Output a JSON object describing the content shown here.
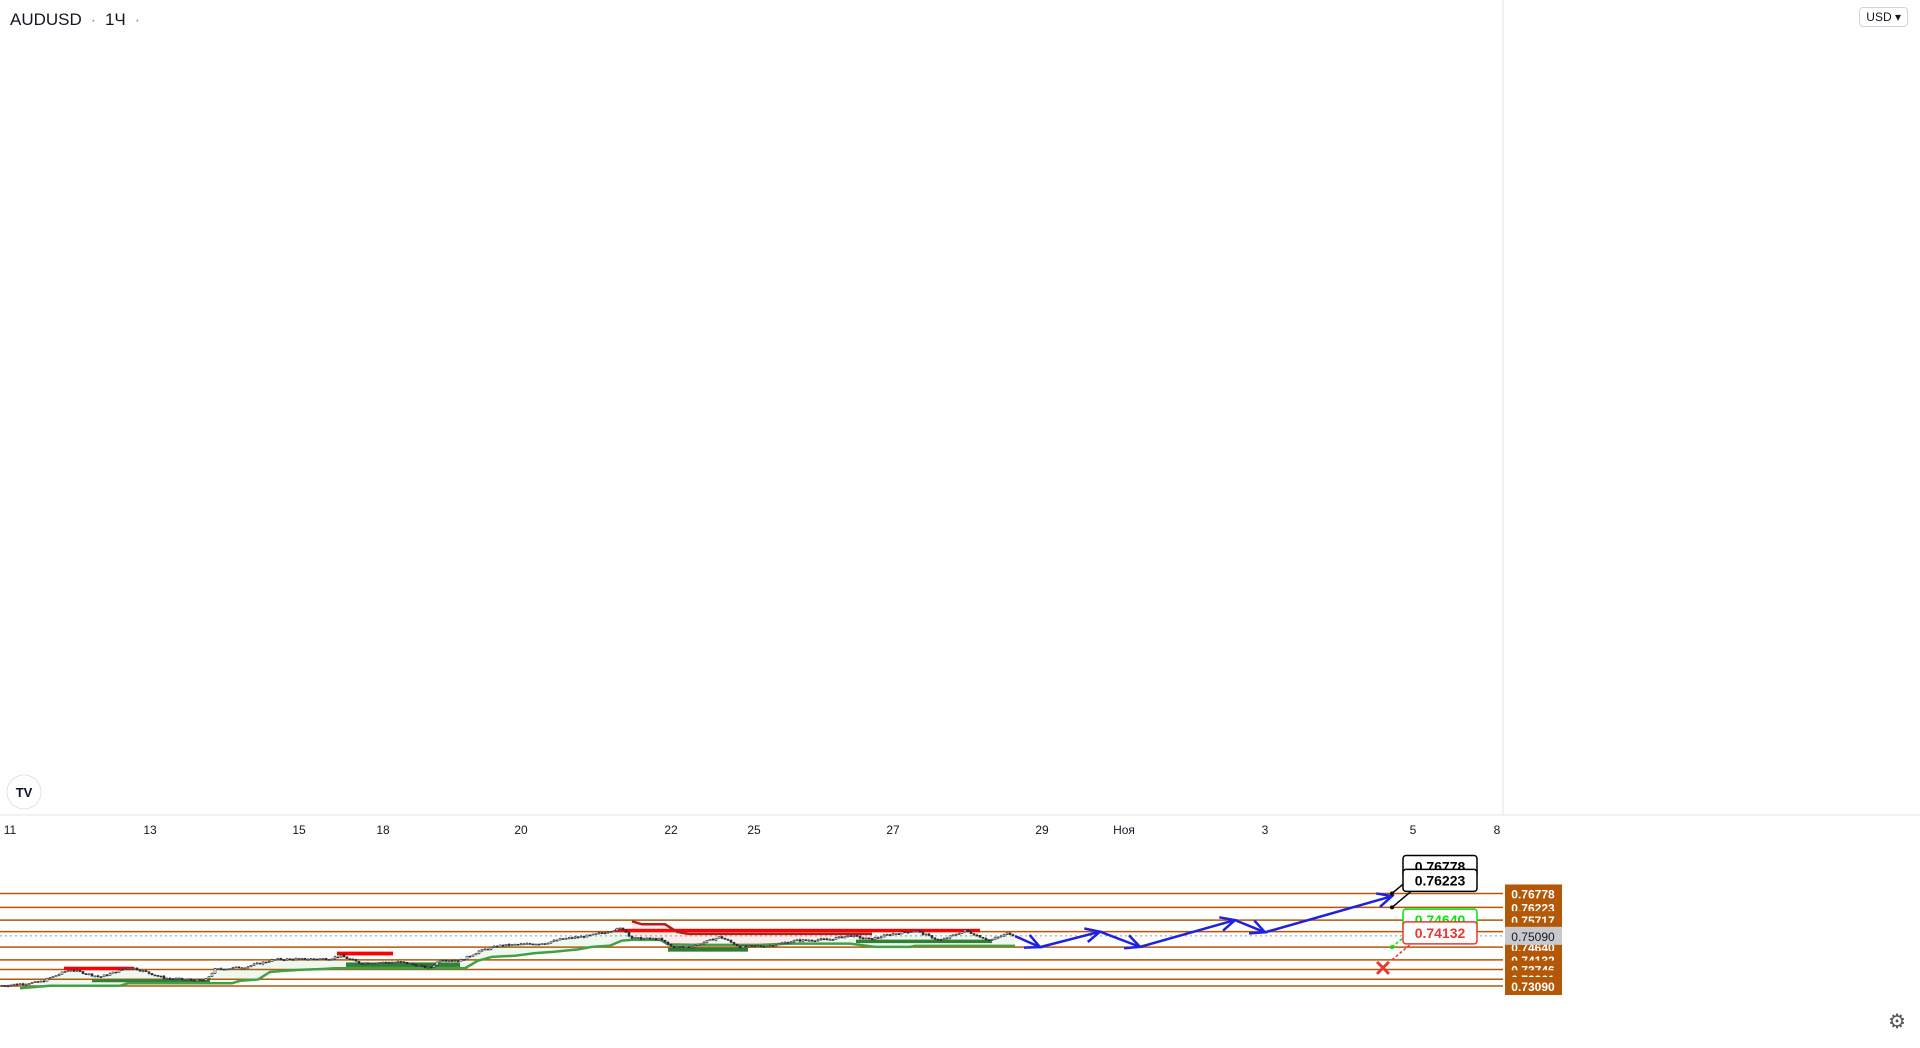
{
  "header": {
    "symbol": "AUDUSD",
    "interval": "1Ч",
    "dot": "·",
    "more": "·"
  },
  "unit_button": "USD ▾",
  "settings_icon": "gear-icon",
  "logo_text": "TV",
  "colors": {
    "level_line": "#b35806",
    "level_label_bg": "#b35806",
    "supply_zone": "#ff0000",
    "demand_zone": "#2e7d32",
    "trail_support": "#43a047",
    "trail_resistance": "#b71c1c",
    "forecast": "#1e22e0",
    "current_price_bg": "#c8c9cc",
    "target_green": "#00e600",
    "target_red": "#e53935"
  },
  "chart_data": {
    "type": "line",
    "symbol": "AUDUSD",
    "timeframe": "1Ч",
    "y_axis": {
      "range": [
        0.73,
        0.7685
      ],
      "ticks": [
        "0.73200",
        "0.73400",
        "0.73600",
        "0.73800",
        "0.74000",
        "0.74200",
        "0.74400",
        "0.74600",
        "0.74800",
        "0.75000",
        "0.75200",
        "0.75400",
        "0.75600",
        "0.75800",
        "0.76000",
        "0.76200",
        "0.76400",
        "0.76600",
        "0.76800"
      ]
    },
    "x_axis": {
      "ticks": [
        "11",
        "13",
        "15",
        "18",
        "20",
        "22",
        "25",
        "27",
        "29",
        "Ноя",
        "3",
        "5",
        "8"
      ]
    },
    "levels": [
      0.76778,
      0.76223,
      0.75717,
      0.75256,
      0.7464,
      0.74132,
      0.73746,
      0.73361,
      0.7309
    ],
    "level_labels": [
      "0.76778",
      "0.76223",
      "0.75717",
      "0.75256",
      "0.74640",
      "0.74132",
      "0.73746",
      "0.73361",
      "0.73090"
    ],
    "current_price": 0.7509,
    "current_price_label": "0.75090",
    "price_path": [
      [
        0,
        0.731
      ],
      [
        40,
        0.7325
      ],
      [
        70,
        0.7375
      ],
      [
        100,
        0.7345
      ],
      [
        130,
        0.7385
      ],
      [
        165,
        0.734
      ],
      [
        205,
        0.733
      ],
      [
        215,
        0.7375
      ],
      [
        245,
        0.7385
      ],
      [
        275,
        0.7415
      ],
      [
        330,
        0.7418
      ],
      [
        340,
        0.743
      ],
      [
        360,
        0.74
      ],
      [
        400,
        0.7405
      ],
      [
        430,
        0.738
      ],
      [
        440,
        0.7415
      ],
      [
        460,
        0.741
      ],
      [
        480,
        0.745
      ],
      [
        500,
        0.747
      ],
      [
        520,
        0.7475
      ],
      [
        545,
        0.748
      ],
      [
        560,
        0.7495
      ],
      [
        590,
        0.751
      ],
      [
        622,
        0.754
      ],
      [
        632,
        0.75
      ],
      [
        660,
        0.7495
      ],
      [
        672,
        0.7465
      ],
      [
        690,
        0.7465
      ],
      [
        720,
        0.7505
      ],
      [
        740,
        0.7465
      ],
      [
        770,
        0.747
      ],
      [
        795,
        0.749
      ],
      [
        830,
        0.7495
      ],
      [
        850,
        0.751
      ],
      [
        870,
        0.7495
      ],
      [
        890,
        0.7515
      ],
      [
        915,
        0.753
      ],
      [
        940,
        0.749
      ],
      [
        965,
        0.753
      ],
      [
        990,
        0.749
      ],
      [
        1008,
        0.752
      ],
      [
        1015,
        0.7509
      ]
    ],
    "supply_zones": [
      {
        "x": [
          64,
          134
        ],
        "y": [
          0.7372,
          0.7386
        ]
      },
      {
        "x": [
          337,
          393
        ],
        "y": [
          0.7431,
          0.7446
        ]
      },
      {
        "x": [
          615,
          980
        ],
        "y": [
          0.7524,
          0.7537
        ]
      }
    ],
    "demand_zones": [
      {
        "x": [
          92,
          210
        ],
        "y": [
          0.7324,
          0.7336
        ]
      },
      {
        "x": [
          346,
          460
        ],
        "y": [
          0.7385,
          0.7403
        ]
      },
      {
        "x": [
          668,
          748
        ],
        "y": [
          0.7446,
          0.7462
        ]
      },
      {
        "x": [
          856,
          992
        ],
        "y": [
          0.748,
          0.7494
        ]
      }
    ],
    "support_trail": [
      [
        20,
        0.73
      ],
      [
        50,
        0.731
      ],
      [
        120,
        0.731
      ],
      [
        128,
        0.732
      ],
      [
        232,
        0.732
      ],
      [
        240,
        0.733
      ],
      [
        258,
        0.7335
      ],
      [
        270,
        0.7365
      ],
      [
        285,
        0.737
      ],
      [
        302,
        0.7374
      ],
      [
        322,
        0.7377
      ],
      [
        335,
        0.738
      ],
      [
        465,
        0.738
      ],
      [
        478,
        0.741
      ],
      [
        492,
        0.7425
      ],
      [
        516,
        0.743
      ],
      [
        535,
        0.744
      ],
      [
        553,
        0.7445
      ],
      [
        578,
        0.7455
      ],
      [
        592,
        0.7465
      ],
      [
        610,
        0.747
      ],
      [
        622,
        0.749
      ],
      [
        632,
        0.7493
      ],
      [
        660,
        0.7493
      ],
      [
        668,
        0.7475
      ],
      [
        700,
        0.7473
      ],
      [
        760,
        0.7473
      ],
      [
        792,
        0.7478
      ],
      [
        850,
        0.7478
      ],
      [
        875,
        0.7465
      ],
      [
        910,
        0.7465
      ],
      [
        915,
        0.7469
      ],
      [
        1015,
        0.7469
      ]
    ],
    "resistance_trail": [
      [
        632,
        0.7567
      ],
      [
        642,
        0.7555
      ],
      [
        665,
        0.7555
      ],
      [
        677,
        0.7525
      ],
      [
        688,
        0.7517
      ],
      [
        872,
        0.7517
      ]
    ],
    "forecast_path": [
      [
        1015,
        0.7508
      ],
      [
        1040,
        0.7464
      ],
      [
        1100,
        0.75256
      ],
      [
        1140,
        0.7465
      ],
      [
        1235,
        0.75717
      ],
      [
        1265,
        0.7523
      ],
      [
        1392,
        0.7667
      ]
    ],
    "targets": [
      {
        "label": "0.76778",
        "value": 0.76778,
        "style": "black"
      },
      {
        "label": "0.76223",
        "value": 0.76223,
        "style": "black"
      },
      {
        "label": "0.74640",
        "value": 0.7464,
        "style": "green"
      },
      {
        "label": "0.74132",
        "value": 0.74132,
        "style": "red"
      }
    ]
  }
}
